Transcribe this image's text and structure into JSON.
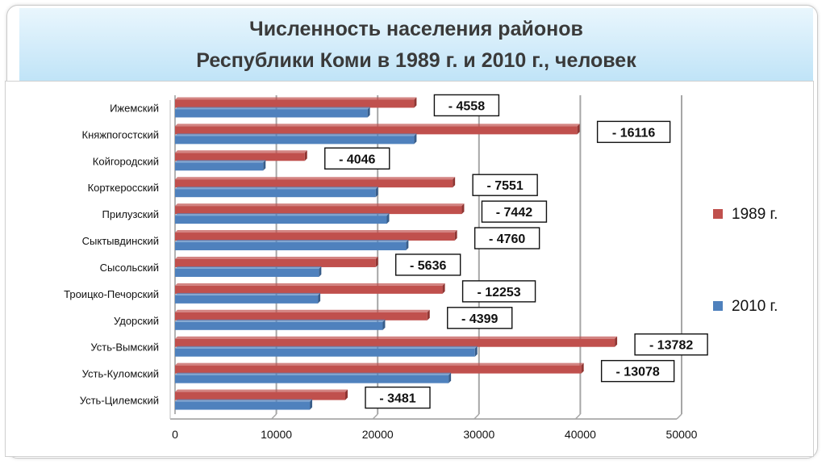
{
  "title_line1": "Численность населения районов",
  "title_line2": "Республики Коми в 1989 г. и 2010 г., человек",
  "chart_data": {
    "type": "bar",
    "orientation": "horizontal",
    "categories": [
      "Ижемский",
      "Княжпогостский",
      "Койгородский",
      "Корткеросский",
      "Прилузский",
      "Сыктывдинский",
      "Сысольский",
      "Троицко-Печорский",
      "Удорский",
      "Усть-Вымский",
      "Усть-Куломский",
      "Усть-Цилемский"
    ],
    "series": [
      {
        "name": "1989 г.",
        "color": "#c0504d",
        "values": [
          23600,
          39700,
          12800,
          27400,
          28300,
          27600,
          19800,
          26400,
          24900,
          43400,
          40100,
          16800
        ]
      },
      {
        "name": "2010 г.",
        "color": "#4f81bd",
        "values": [
          19000,
          23600,
          8700,
          19800,
          20900,
          22800,
          14200,
          14100,
          20500,
          29600,
          27000,
          13300
        ]
      }
    ],
    "annotations": [
      "- 4558",
      "- 16116",
      "- 4046",
      "- 7551",
      "- 7442",
      "- 4760",
      "- 5636",
      "- 12253",
      "- 4399",
      "- 13782",
      "- 13078",
      "- 3481"
    ],
    "xlim": [
      0,
      50000
    ],
    "xticks": [
      "0",
      "10000",
      "20000",
      "30000",
      "40000",
      "50000"
    ],
    "legend_position": "right",
    "grid": true
  }
}
